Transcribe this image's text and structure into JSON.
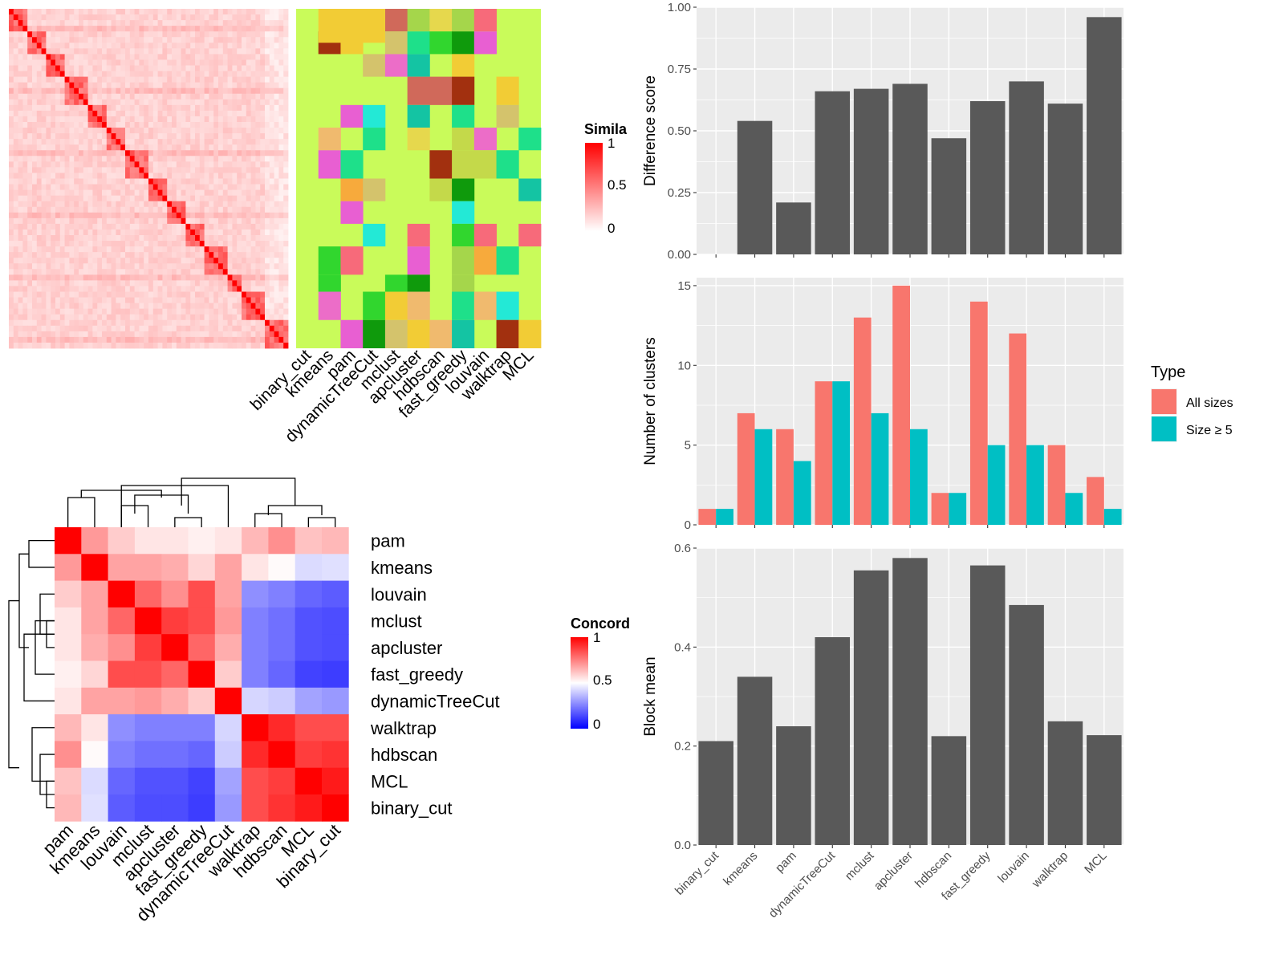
{
  "chart_data": [
    {
      "type": "heatmap",
      "panel": "similarity-heatmap",
      "legend_title": "Simila",
      "legend_ticks": [
        "1",
        "0.5",
        "0"
      ],
      "n_terms": 60,
      "diagonal_value": 1,
      "block_boundaries": [
        4,
        8,
        12,
        17,
        21,
        25,
        30,
        34,
        38,
        42,
        47,
        50,
        55,
        60
      ],
      "method_columns": [
        "binary_cut",
        "kmeans",
        "pam",
        "dynamicTreeCut",
        "mclust",
        "apcluster",
        "hdbscan",
        "fast_greedy",
        "louvain",
        "walktrap",
        "MCL"
      ],
      "cluster_palette": [
        "#f2cc35",
        "#d0695a",
        "#f76a7a",
        "#a2300f",
        "#e6d84d",
        "#31d62e",
        "#0f9a0c",
        "#14c4a3",
        "#f7aa3c",
        "#f0ba6e",
        "#c4d94a",
        "#1ee08a",
        "#ec6dc8",
        "#23e9d6",
        "#a5d64b",
        "#d4c36c",
        "#e85fd2"
      ],
      "background_color": "#c9fb5a",
      "color_scale": [
        "#ffffff",
        "#ff0000"
      ]
    },
    {
      "type": "heatmap",
      "panel": "concordance-heatmap",
      "legend_title": "Concord",
      "legend_ticks": [
        "1",
        "0.5",
        "0"
      ],
      "rows": [
        "pam",
        "kmeans",
        "louvain",
        "mclust",
        "apcluster",
        "fast_greedy",
        "dynamicTreeCut",
        "walktrap",
        "hdbscan",
        "MCL",
        "binary_cut"
      ],
      "columns": [
        "pam",
        "kmeans",
        "louvain",
        "mclust",
        "apcluster",
        "fast_greedy",
        "dynamicTreeCut",
        "walktrap",
        "hdbscan",
        "MCL",
        "binary_cut"
      ],
      "values": [
        [
          1.0,
          0.7,
          0.6,
          0.55,
          0.55,
          0.53,
          0.55,
          0.64,
          0.72,
          0.62,
          0.64
        ],
        [
          0.7,
          1.0,
          0.68,
          0.68,
          0.66,
          0.58,
          0.68,
          0.55,
          0.51,
          0.43,
          0.44
        ],
        [
          0.6,
          0.68,
          1.0,
          0.8,
          0.72,
          0.85,
          0.68,
          0.28,
          0.25,
          0.2,
          0.18
        ],
        [
          0.55,
          0.68,
          0.8,
          1.0,
          0.88,
          0.85,
          0.7,
          0.25,
          0.22,
          0.16,
          0.15
        ],
        [
          0.55,
          0.66,
          0.72,
          0.88,
          1.0,
          0.8,
          0.66,
          0.25,
          0.22,
          0.16,
          0.15
        ],
        [
          0.53,
          0.58,
          0.85,
          0.85,
          0.8,
          1.0,
          0.6,
          0.25,
          0.2,
          0.13,
          0.12
        ],
        [
          0.55,
          0.68,
          0.68,
          0.7,
          0.66,
          0.6,
          1.0,
          0.42,
          0.4,
          0.32,
          0.3
        ],
        [
          0.64,
          0.55,
          0.28,
          0.25,
          0.25,
          0.25,
          0.42,
          1.0,
          0.92,
          0.85,
          0.85
        ],
        [
          0.72,
          0.51,
          0.25,
          0.22,
          0.22,
          0.2,
          0.4,
          0.92,
          1.0,
          0.88,
          0.9
        ],
        [
          0.62,
          0.43,
          0.2,
          0.16,
          0.16,
          0.13,
          0.32,
          0.85,
          0.88,
          1.0,
          0.95
        ],
        [
          0.64,
          0.44,
          0.18,
          0.15,
          0.15,
          0.12,
          0.3,
          0.85,
          0.9,
          0.95,
          1.0
        ]
      ],
      "color_scale": [
        "#0000ff",
        "#ffffff",
        "#ff0000"
      ]
    },
    {
      "type": "bar",
      "panel": "difference-score",
      "categories": [
        "binary_cut",
        "kmeans",
        "pam",
        "dynamicTreeCut",
        "mclust",
        "apcluster",
        "hdbscan",
        "fast_greedy",
        "louvain",
        "walktrap",
        "MCL"
      ],
      "values": [
        0.0,
        0.54,
        0.21,
        0.66,
        0.67,
        0.69,
        0.47,
        0.62,
        0.7,
        0.61,
        0.96
      ],
      "ylabel": "Difference score",
      "ylim": [
        0,
        1
      ],
      "yticks": [
        "0.00",
        "0.25",
        "0.50",
        "0.75",
        "1.00"
      ],
      "bar_color": "#595959",
      "grid": true
    },
    {
      "type": "bar",
      "panel": "number-of-clusters",
      "categories": [
        "binary_cut",
        "kmeans",
        "pam",
        "dynamicTreeCut",
        "mclust",
        "apcluster",
        "hdbscan",
        "fast_greedy",
        "louvain",
        "walktrap",
        "MCL"
      ],
      "series": [
        {
          "name": "All sizes",
          "values": [
            1,
            7,
            6,
            9,
            13,
            15,
            2,
            14,
            12,
            5,
            3
          ],
          "color": "#f8766d"
        },
        {
          "name": "Size ≥ 5",
          "values": [
            1,
            6,
            4,
            9,
            7,
            6,
            2,
            5,
            5,
            2,
            1
          ],
          "color": "#00bfc4"
        }
      ],
      "ylabel": "Number of clusters",
      "ylim": [
        0,
        15.5
      ],
      "yticks": [
        "0",
        "5",
        "10",
        "15"
      ],
      "legend_title": "Type",
      "legend_position": "right",
      "grid": true
    },
    {
      "type": "bar",
      "panel": "block-mean",
      "categories": [
        "binary_cut",
        "kmeans",
        "pam",
        "dynamicTreeCut",
        "mclust",
        "apcluster",
        "hdbscan",
        "fast_greedy",
        "louvain",
        "walktrap",
        "MCL"
      ],
      "values": [
        0.21,
        0.34,
        0.24,
        0.42,
        0.555,
        0.58,
        0.22,
        0.565,
        0.485,
        0.25,
        0.222
      ],
      "ylabel": "Block mean",
      "ylim": [
        0,
        0.6
      ],
      "yticks": [
        "0.0",
        "0.2",
        "0.4",
        "0.6"
      ],
      "bar_color": "#595959",
      "grid": true
    }
  ]
}
